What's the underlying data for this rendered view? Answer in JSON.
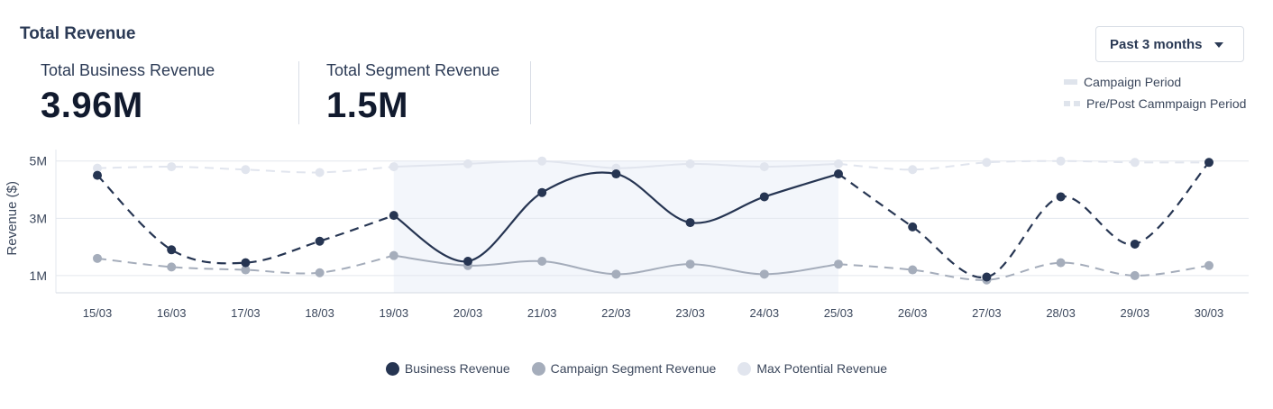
{
  "header": {
    "title": "Total Revenue"
  },
  "kpis": [
    {
      "label": "Total Business Revenue",
      "value": "3.96M"
    },
    {
      "label": "Total Segment Revenue",
      "value": "1.5M"
    }
  ],
  "range_select": {
    "selected": "Past 3 months"
  },
  "period_legend": {
    "campaign": "Campaign Period",
    "prepost": "Pre/Post Cammpaign Period"
  },
  "colors": {
    "business": "#263552",
    "segment": "#a5adbb",
    "potential": "#e1e5ee",
    "campaign_band": "#f3f6fb",
    "grid": "#e3e7ee"
  },
  "chart_data": {
    "type": "line",
    "ylabel": "Revenue ($)",
    "ylim": [
      0.4,
      5.4
    ],
    "yticks": [
      1,
      3,
      5
    ],
    "ytick_labels": [
      "1M",
      "3M",
      "5M"
    ],
    "categories": [
      "15/03",
      "16/03",
      "17/03",
      "18/03",
      "19/03",
      "20/03",
      "21/03",
      "22/03",
      "23/03",
      "24/03",
      "25/03",
      "26/03",
      "27/03",
      "28/03",
      "29/03",
      "30/03"
    ],
    "campaign_period": {
      "start": "19/03",
      "end": "25/03"
    },
    "series": [
      {
        "name": "Business Revenue",
        "values": [
          4.5,
          1.9,
          1.45,
          2.2,
          3.1,
          1.5,
          3.9,
          4.55,
          2.85,
          3.75,
          4.55,
          2.7,
          0.95,
          3.75,
          2.1,
          4.95
        ]
      },
      {
        "name": "Campaign Segment Revenue",
        "values": [
          1.6,
          1.3,
          1.2,
          1.1,
          1.7,
          1.35,
          1.5,
          1.05,
          1.4,
          1.05,
          1.4,
          1.2,
          0.85,
          1.45,
          1.0,
          1.35
        ]
      },
      {
        "name": "Max Potential Revenue",
        "values": [
          4.75,
          4.8,
          4.7,
          4.6,
          4.8,
          4.9,
          5.0,
          4.75,
          4.9,
          4.8,
          4.9,
          4.7,
          4.95,
          5.0,
          4.95,
          4.95
        ]
      }
    ]
  }
}
